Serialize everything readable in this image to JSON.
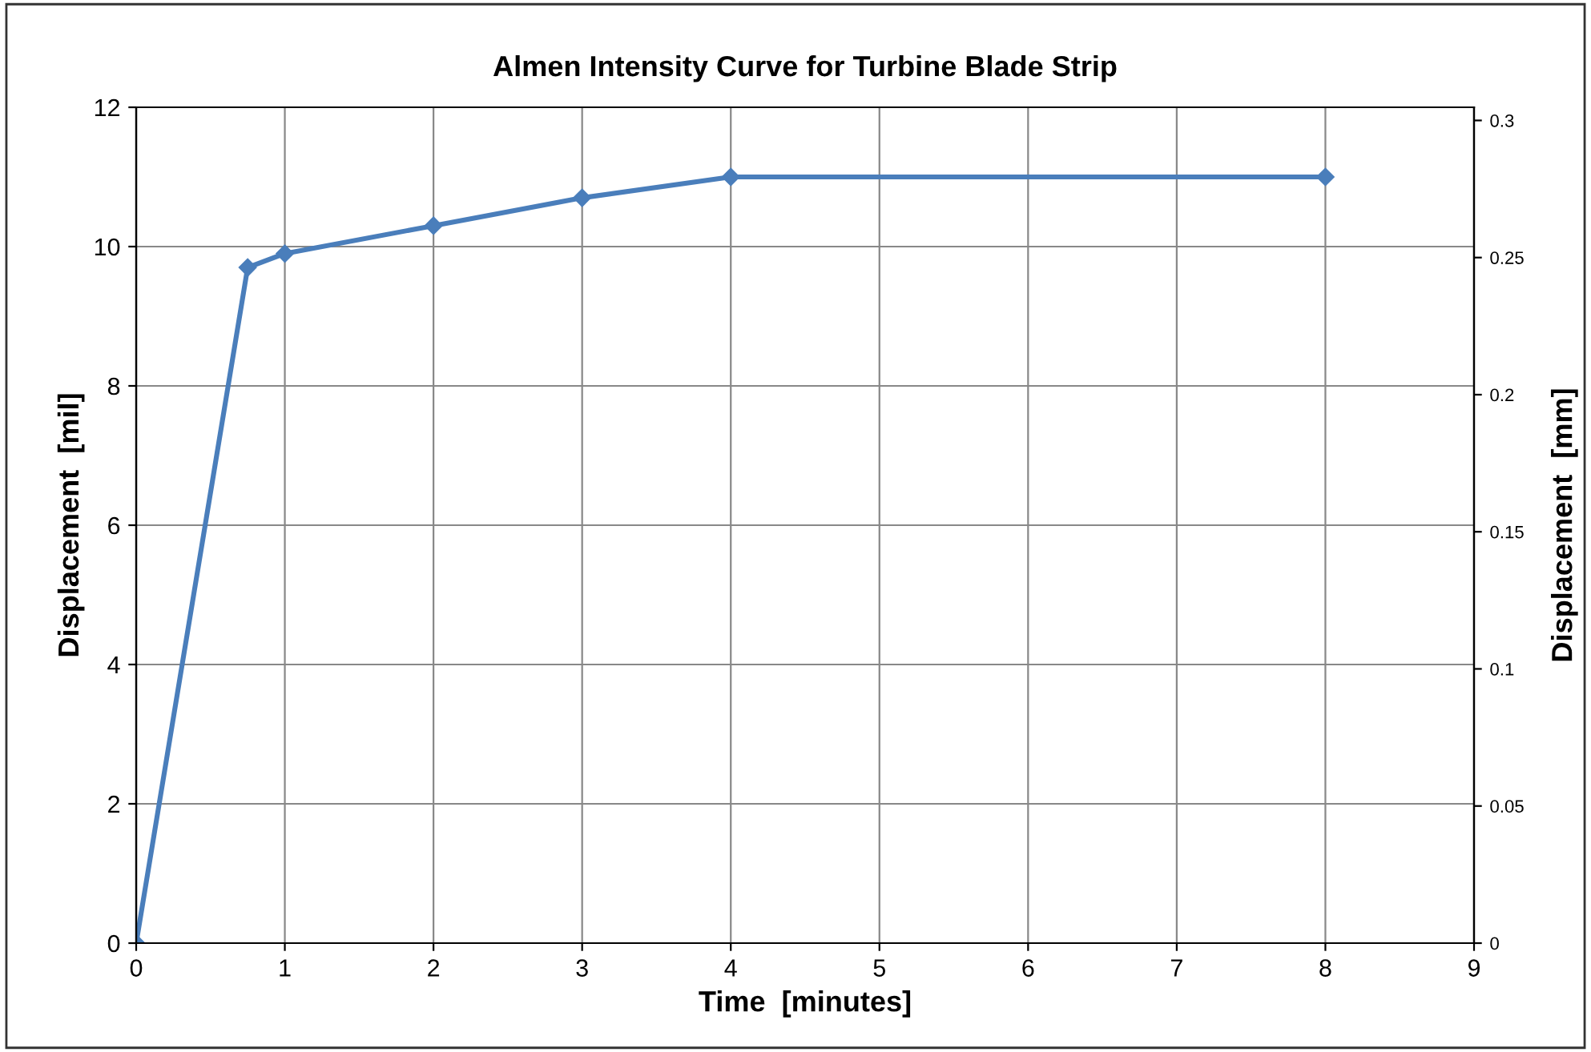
{
  "chart_data": {
    "type": "line",
    "title": "Almen Intensity Curve for Turbine Blade Strip",
    "xlabel": "Time  [minutes]",
    "ylabel": "Displacement  [mil]",
    "y2label": "Displacement  [mm]",
    "x": [
      0,
      0.75,
      1,
      2,
      3,
      4,
      8
    ],
    "series": [
      {
        "color": "#4a7ebb",
        "values": [
          0,
          9.7,
          9.9,
          10.3,
          10.7,
          11,
          11
        ]
      }
    ],
    "xlim": [
      0,
      9
    ],
    "xticks": [
      0,
      1,
      2,
      3,
      4,
      5,
      6,
      7,
      8,
      9
    ],
    "ylim": [
      0,
      12
    ],
    "yticks": [
      0,
      2,
      4,
      6,
      8,
      10,
      12
    ],
    "y2lim": [
      0,
      0.3048
    ],
    "y2ticks": [
      0,
      0.05,
      0.1,
      0.15,
      0.2,
      0.25,
      0.3
    ],
    "grid": true,
    "marker": "diamond",
    "line_style": "solid"
  }
}
